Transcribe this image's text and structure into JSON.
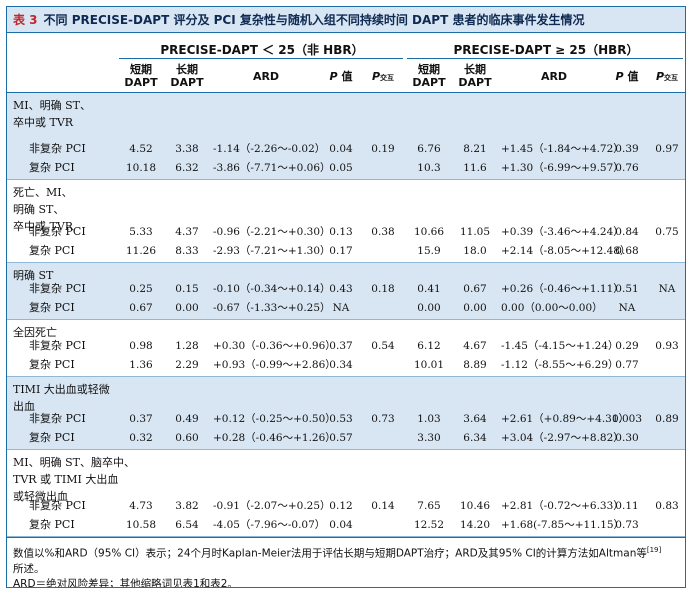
{
  "table": {
    "number": "表 3",
    "title": "不同 PRECISE-DAPT 评分及 PCI 复杂性与随机入组不同持续时间 DAPT 患者的临床事件发生情况",
    "group_left": "PRECISE-DAPT ＜ 25（非 HBR）",
    "group_right": "PRECISE-DAPT ≥ 25（HBR）",
    "col_short": [
      "短期",
      "DAPT"
    ],
    "col_long": [
      "长期",
      "DAPT"
    ],
    "col_ard": "ARD",
    "col_p": "P",
    "col_p_suffix": " 值",
    "col_pint": "P",
    "col_pint_sub": "交互"
  },
  "sections": [
    {
      "label": [
        "MI、明确 ST、",
        "卒中或 TVR"
      ],
      "rows": [
        {
          "name": "非复杂 PCI",
          "l": [
            "4.52",
            "3.38",
            "-1.14（-2.26～-0.02）",
            "0.04",
            "0.19"
          ],
          "r": [
            "6.76",
            "8.21",
            "+1.45（-1.84～+4.72）",
            "0.39",
            "0.97"
          ]
        },
        {
          "name": "复杂 PCI",
          "l": [
            "10.18",
            "6.32",
            "-3.86（-7.71～+0.06）",
            "0.05",
            ""
          ],
          "r": [
            "10.3",
            "11.6",
            "+1.30（-6.99～+9.57）",
            "0.76",
            ""
          ]
        }
      ]
    },
    {
      "label": [
        "死亡、MI、",
        "明确 ST、",
        "卒中或 TVR"
      ],
      "rows": [
        {
          "name": "非复杂 PCI",
          "l": [
            "5.33",
            "4.37",
            "-0.96（-2.21～+0.30）",
            "0.13",
            "0.38"
          ],
          "r": [
            "10.66",
            "11.05",
            "+0.39（-3.46～+4.24）",
            "0.84",
            "0.75"
          ]
        },
        {
          "name": "复杂 PCI",
          "l": [
            "11.26",
            "8.33",
            "-2.93（-7.21～+1.30）",
            "0.17",
            ""
          ],
          "r": [
            "15.9",
            "18.0",
            "+2.14（-8.05～+12.48）",
            "0.68",
            ""
          ]
        }
      ]
    },
    {
      "label": [
        "明确 ST"
      ],
      "rows": [
        {
          "name": "非复杂 PCI",
          "l": [
            "0.25",
            "0.15",
            "-0.10（-0.34～+0.14）",
            "0.43",
            "0.18"
          ],
          "r": [
            "0.41",
            "0.67",
            "+0.26（-0.46～+1.11）",
            "0.51",
            "NA"
          ]
        },
        {
          "name": "复杂 PCI",
          "l": [
            "0.67",
            "0.00",
            "-0.67（-1.33～+0.25）",
            "NA",
            ""
          ],
          "r": [
            "0.00",
            "0.00",
            "0.00（0.00～0.00）",
            "NA",
            ""
          ]
        }
      ]
    },
    {
      "label": [
        "全因死亡"
      ],
      "rows": [
        {
          "name": "非复杂 PCI",
          "l": [
            "0.98",
            "1.28",
            "+0.30（-0.36～+0.96）",
            "0.37",
            "0.54"
          ],
          "r": [
            "6.12",
            "4.67",
            "-1.45（-4.15～+1.24）",
            "0.29",
            "0.93"
          ]
        },
        {
          "name": "复杂 PCI",
          "l": [
            "1.36",
            "2.29",
            "+0.93（-0.99～+2.86）",
            "0.34",
            ""
          ],
          "r": [
            "10.01",
            "8.89",
            "-1.12（-8.55～+6.29）",
            "0.77",
            ""
          ]
        }
      ]
    },
    {
      "label": [
        "TIMI 大出血或轻微",
        "出血"
      ],
      "rows": [
        {
          "name": "非复杂 PCI",
          "l": [
            "0.37",
            "0.49",
            "+0.12（-0.25～+0.50）",
            "0.53",
            "0.73"
          ],
          "r": [
            "1.03",
            "3.64",
            "+2.61（+0.89～+4.31）",
            "0.003",
            "0.89"
          ]
        },
        {
          "name": "复杂 PCI",
          "l": [
            "0.32",
            "0.60",
            "+0.28（-0.46～+1.26）",
            "0.57",
            ""
          ],
          "r": [
            "3.30",
            "6.34",
            "+3.04（-2.97～+8.82）",
            "0.30",
            ""
          ]
        }
      ]
    },
    {
      "label": [
        "MI、明确 ST、脑卒中、",
        "TVR 或 TIMI 大出血",
        "或轻微出血"
      ],
      "rows": [
        {
          "name": "非复杂 PCI",
          "l": [
            "4.73",
            "3.82",
            "-0.91（-2.07～+0.25）",
            "0.12",
            "0.14"
          ],
          "r": [
            "7.65",
            "10.46",
            "+2.81（-0.72～+6.33）",
            "0.11",
            "0.83"
          ]
        },
        {
          "name": "复杂 PCI",
          "l": [
            "10.58",
            "6.54",
            "-4.05（-7.96～-0.07）",
            "0.04",
            ""
          ],
          "r": [
            "12.52",
            "14.20",
            "+1.68(-7.85～+11.15）",
            "0.73",
            ""
          ]
        }
      ]
    }
  ],
  "footnote": {
    "line1": "数值以%和ARD（95% CI）表示；24个月时Kaplan-Meier法用于评估长期与短期DAPT治疗；ARD及其95% CI的计算方法如Altman等",
    "ref": "[19]",
    "line1b": "所述。",
    "line2": "ARD＝绝对风险差异；其他缩略词见表1和表2。"
  }
}
